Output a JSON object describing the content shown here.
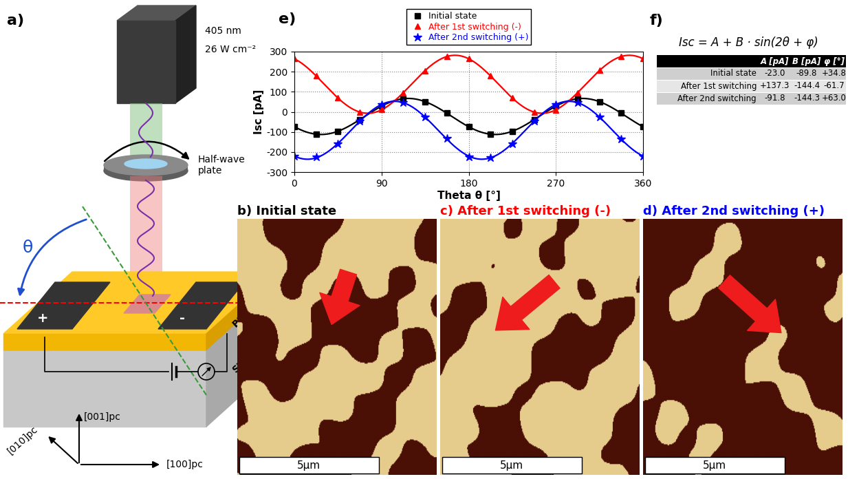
{
  "schematic": {
    "label": "a)",
    "source": "405 nm",
    "intensity": "26 W cm⁻²",
    "waveplate": "Half-wave\nplate",
    "angle": "θ",
    "layers": [
      "BFO",
      "STO"
    ],
    "electrodes": [
      "+",
      "-"
    ],
    "axes": [
      "[001]pc",
      "[010]pc",
      "[100]pc"
    ]
  },
  "chart_data": {
    "label": "e)",
    "type": "line",
    "x_label": "Theta θ [°]",
    "y_label": "Isc [pA]",
    "x": [
      0,
      22.5,
      45,
      67.5,
      90,
      112.5,
      135,
      157.5,
      180,
      202.5,
      225,
      247.5,
      270,
      292.5,
      315,
      337.5,
      360
    ],
    "xlim": [
      0,
      360
    ],
    "xticks": [
      0,
      90,
      180,
      270,
      360
    ],
    "ylim": [
      -300,
      300
    ],
    "yticks": [
      -300,
      -200,
      -100,
      0,
      100,
      200,
      300
    ],
    "grid": true,
    "legend": "upper center",
    "series": [
      {
        "name": "Initial state",
        "color": "#000000",
        "marker": "square",
        "values": [
          -75,
          -110,
          -97,
          -38,
          28,
          65,
          50,
          -5,
          -75,
          -112,
          -99,
          -39,
          28,
          65,
          50,
          -5,
          -75
        ]
      },
      {
        "name": "After 1st switching (-)",
        "color": "#ff0000",
        "marker": "triangle",
        "values": [
          265,
          180,
          72,
          0,
          12,
          96,
          205,
          277,
          265,
          180,
          70,
          0,
          10,
          96,
          206,
          276,
          265
        ]
      },
      {
        "name": "After 2nd switching (+)",
        "color": "#0000ff",
        "marker": "star",
        "values": [
          -222,
          -226,
          -158,
          -45,
          37,
          47,
          -27,
          -133,
          -224,
          -228,
          -160,
          -47,
          37,
          46,
          -27,
          -134,
          -222
        ]
      }
    ]
  },
  "fit": {
    "label": "f)",
    "formula": "Isc = A + B · sin(2θ + φ)",
    "columns": [
      "A [pA]",
      "B [pA]",
      "φ [°]"
    ],
    "rows": [
      {
        "name": "Initial state",
        "cells": [
          "-23.0",
          "-89.8",
          "+34.8"
        ]
      },
      {
        "name": "After 1st switching",
        "cells": [
          "+137.3",
          "-144.4",
          "-61.7"
        ]
      },
      {
        "name": "After 2nd switching",
        "cells": [
          "-91.8",
          "-144.3",
          "+63.0"
        ]
      }
    ]
  },
  "images": [
    {
      "title": "b) Initial state",
      "color": "#000000",
      "scale_bar": "5µm"
    },
    {
      "title": "c) After 1st switching (-)",
      "color": "#ff0000",
      "scale_bar": "5µm"
    },
    {
      "title": "d) After 2nd switching (+)",
      "color": "#0000ff",
      "scale_bar": "5µm"
    }
  ]
}
